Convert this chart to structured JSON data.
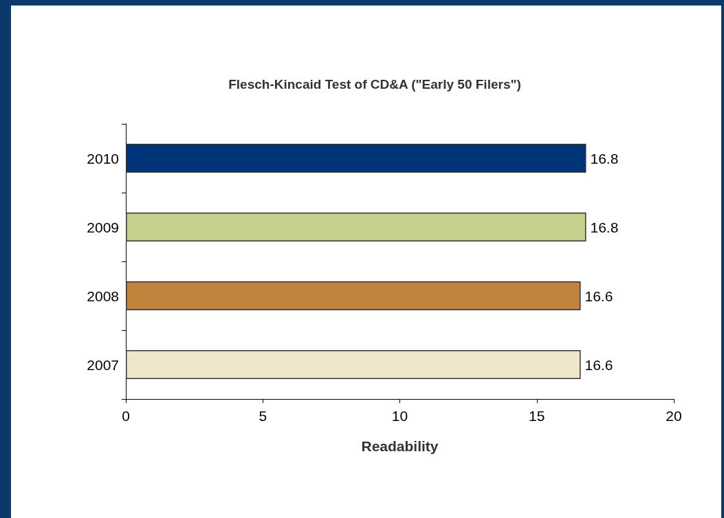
{
  "chart_data": {
    "type": "bar",
    "orientation": "horizontal",
    "title": "Flesch-Kincaid Test of CD&A (\"Early 50 Filers\")",
    "xlabel": "Readability",
    "categories": [
      "2010",
      "2009",
      "2008",
      "2007"
    ],
    "values": [
      16.8,
      16.8,
      16.6,
      16.6
    ],
    "colors": [
      "#003478",
      "#c4d08e",
      "#c0823c",
      "#efe6cc"
    ],
    "xlim": [
      0,
      20
    ],
    "xticks": [
      0,
      5,
      10,
      15,
      20
    ],
    "data_labels": true,
    "grid": false
  }
}
